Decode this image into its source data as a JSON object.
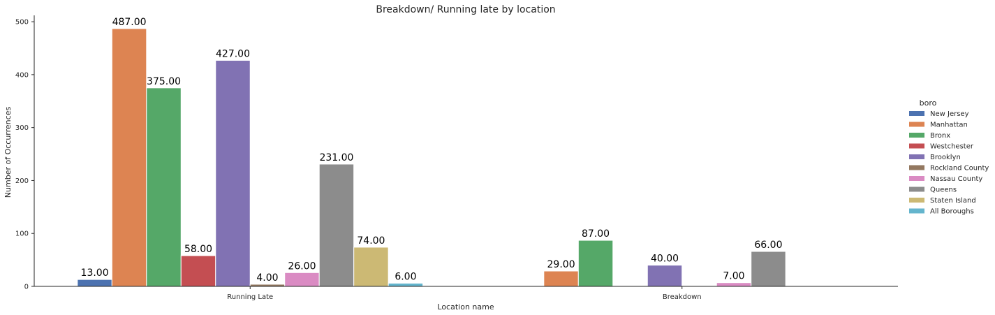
{
  "chart_data": {
    "type": "bar",
    "title": "Breakdown/ Running late by location",
    "xlabel": "Location name",
    "ylabel": "Number of Occurrences",
    "ylim": [
      0,
      512
    ],
    "yticks": [
      0,
      100,
      200,
      300,
      400,
      500
    ],
    "categories": [
      "Running Late",
      "Breakdown"
    ],
    "legend": {
      "title": "boro",
      "placement": "right"
    },
    "grid": false,
    "series": [
      {
        "name": "New Jersey",
        "color": "#4c72b0",
        "values": [
          13,
          null
        ]
      },
      {
        "name": "Manhattan",
        "color": "#dd8452",
        "values": [
          487,
          29
        ]
      },
      {
        "name": "Bronx",
        "color": "#55a868",
        "values": [
          375,
          87
        ]
      },
      {
        "name": "Westchester",
        "color": "#c44e52",
        "values": [
          58,
          null
        ]
      },
      {
        "name": "Brooklyn",
        "color": "#8172b3",
        "values": [
          427,
          40
        ]
      },
      {
        "name": "Rockland County",
        "color": "#937860",
        "values": [
          4,
          null
        ]
      },
      {
        "name": "Nassau County",
        "color": "#da8bc3",
        "values": [
          26,
          7
        ]
      },
      {
        "name": "Queens",
        "color": "#8c8c8c",
        "values": [
          231,
          66
        ]
      },
      {
        "name": "Staten Island",
        "color": "#ccb974",
        "values": [
          74,
          null
        ]
      },
      {
        "name": "All Boroughs",
        "color": "#64b5cd",
        "values": [
          6,
          null
        ]
      }
    ]
  }
}
